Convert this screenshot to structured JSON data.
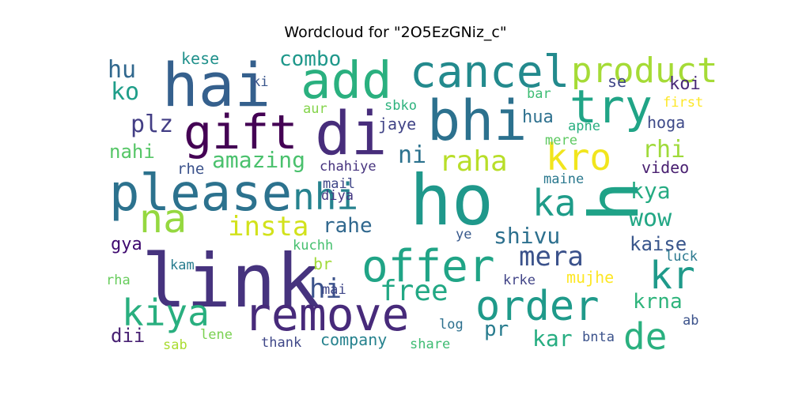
{
  "chart_data": {
    "type": "wordcloud",
    "title": "Wordcloud for \"2O5EzGNiz_c\"",
    "background": "#ffffff",
    "words": [
      {
        "text": "hai",
        "color": "#35608d"
      },
      {
        "text": "add",
        "color": "#2ab07f"
      },
      {
        "text": "cancel",
        "color": "#238a8d"
      },
      {
        "text": "product",
        "color": "#a5db36"
      },
      {
        "text": "try",
        "color": "#20a486"
      },
      {
        "text": "bhi",
        "color": "#2c718e"
      },
      {
        "text": "gift",
        "color": "#440154"
      },
      {
        "text": "di",
        "color": "#472d7b"
      },
      {
        "text": "kro",
        "color": "#f1e51d"
      },
      {
        "text": "hu",
        "color": "#31688e"
      },
      {
        "text": "kese",
        "color": "#21918c"
      },
      {
        "text": "combo",
        "color": "#1f988b"
      },
      {
        "text": "ko",
        "color": "#1f9e89"
      },
      {
        "text": "ki",
        "color": "#39568c"
      },
      {
        "text": "plz",
        "color": "#433e85"
      },
      {
        "text": "aur",
        "color": "#84d44b"
      },
      {
        "text": "sbko",
        "color": "#2db27d"
      },
      {
        "text": "jaye",
        "color": "#414487"
      },
      {
        "text": "hua",
        "color": "#2d708e"
      },
      {
        "text": "se",
        "color": "#404688"
      },
      {
        "text": "koi",
        "color": "#482878"
      },
      {
        "text": "bar",
        "color": "#3dbc74"
      },
      {
        "text": "first",
        "color": "#fde725"
      },
      {
        "text": "apne",
        "color": "#28ae80"
      },
      {
        "text": "hoga",
        "color": "#3e4a89"
      },
      {
        "text": "mere",
        "color": "#5ec962"
      },
      {
        "text": "nahi",
        "color": "#56c667"
      },
      {
        "text": "amazing",
        "color": "#4ac16d"
      },
      {
        "text": "ni",
        "color": "#2c728e"
      },
      {
        "text": "raha",
        "color": "#b8de29"
      },
      {
        "text": "rhi",
        "color": "#9fda3a"
      },
      {
        "text": "rhe",
        "color": "#3b528b"
      },
      {
        "text": "chahiye",
        "color": "#46337e"
      },
      {
        "text": "video",
        "color": "#481f70"
      },
      {
        "text": "please",
        "color": "#2c728e"
      },
      {
        "text": "nhi",
        "color": "#26828e"
      },
      {
        "text": "mail",
        "color": "#3f4788"
      },
      {
        "text": "maine",
        "color": "#2a788e"
      },
      {
        "text": "ho",
        "color": "#1f988b"
      },
      {
        "text": "ka",
        "color": "#1e9c89"
      },
      {
        "text": "kya",
        "color": "#25ab82"
      },
      {
        "text": "h",
        "color": "#1fa287"
      },
      {
        "text": "na",
        "color": "#95d840"
      },
      {
        "text": "diya",
        "color": "#453882"
      },
      {
        "text": "insta",
        "color": "#d2e21b"
      },
      {
        "text": "rahe",
        "color": "#31688e"
      },
      {
        "text": "wow",
        "color": "#22a785"
      },
      {
        "text": "shivu",
        "color": "#2d708e"
      },
      {
        "text": "ye",
        "color": "#38598c"
      },
      {
        "text": "gya",
        "color": "#3e096f"
      },
      {
        "text": "kuchh",
        "color": "#46c06f"
      },
      {
        "text": "kaise",
        "color": "#39568c"
      },
      {
        "text": "link",
        "color": "#46337e"
      },
      {
        "text": "offer",
        "color": "#20a486"
      },
      {
        "text": "mera",
        "color": "#3b528b"
      },
      {
        "text": "kr",
        "color": "#1f9a8a"
      },
      {
        "text": "br",
        "color": "#a0da39"
      },
      {
        "text": "luck",
        "color": "#2a788e"
      },
      {
        "text": "kam",
        "color": "#287c8e"
      },
      {
        "text": "hi",
        "color": "#3b528b"
      },
      {
        "text": "free",
        "color": "#22a884"
      },
      {
        "text": "mujhe",
        "color": "#fde725"
      },
      {
        "text": "krke",
        "color": "#414487"
      },
      {
        "text": "rha",
        "color": "#67cc5c"
      },
      {
        "text": "mai",
        "color": "#3f4788"
      },
      {
        "text": "kiya",
        "color": "#29af7f"
      },
      {
        "text": "remove",
        "color": "#472a7a"
      },
      {
        "text": "order",
        "color": "#1f9a8a"
      },
      {
        "text": "krna",
        "color": "#2fb47c"
      },
      {
        "text": "dii",
        "color": "#482173"
      },
      {
        "text": "log",
        "color": "#2d708e"
      },
      {
        "text": "pr",
        "color": "#287c8e"
      },
      {
        "text": "ab",
        "color": "#3b528b"
      },
      {
        "text": "company",
        "color": "#26828e"
      },
      {
        "text": "kar",
        "color": "#26ad81"
      },
      {
        "text": "de",
        "color": "#2ab07f"
      },
      {
        "text": "sab",
        "color": "#aadc32"
      },
      {
        "text": "lene",
        "color": "#7ad151"
      },
      {
        "text": "thank",
        "color": "#3f4788"
      },
      {
        "text": "share",
        "color": "#3fbc73"
      },
      {
        "text": "bnta",
        "color": "#3b528b"
      }
    ]
  }
}
